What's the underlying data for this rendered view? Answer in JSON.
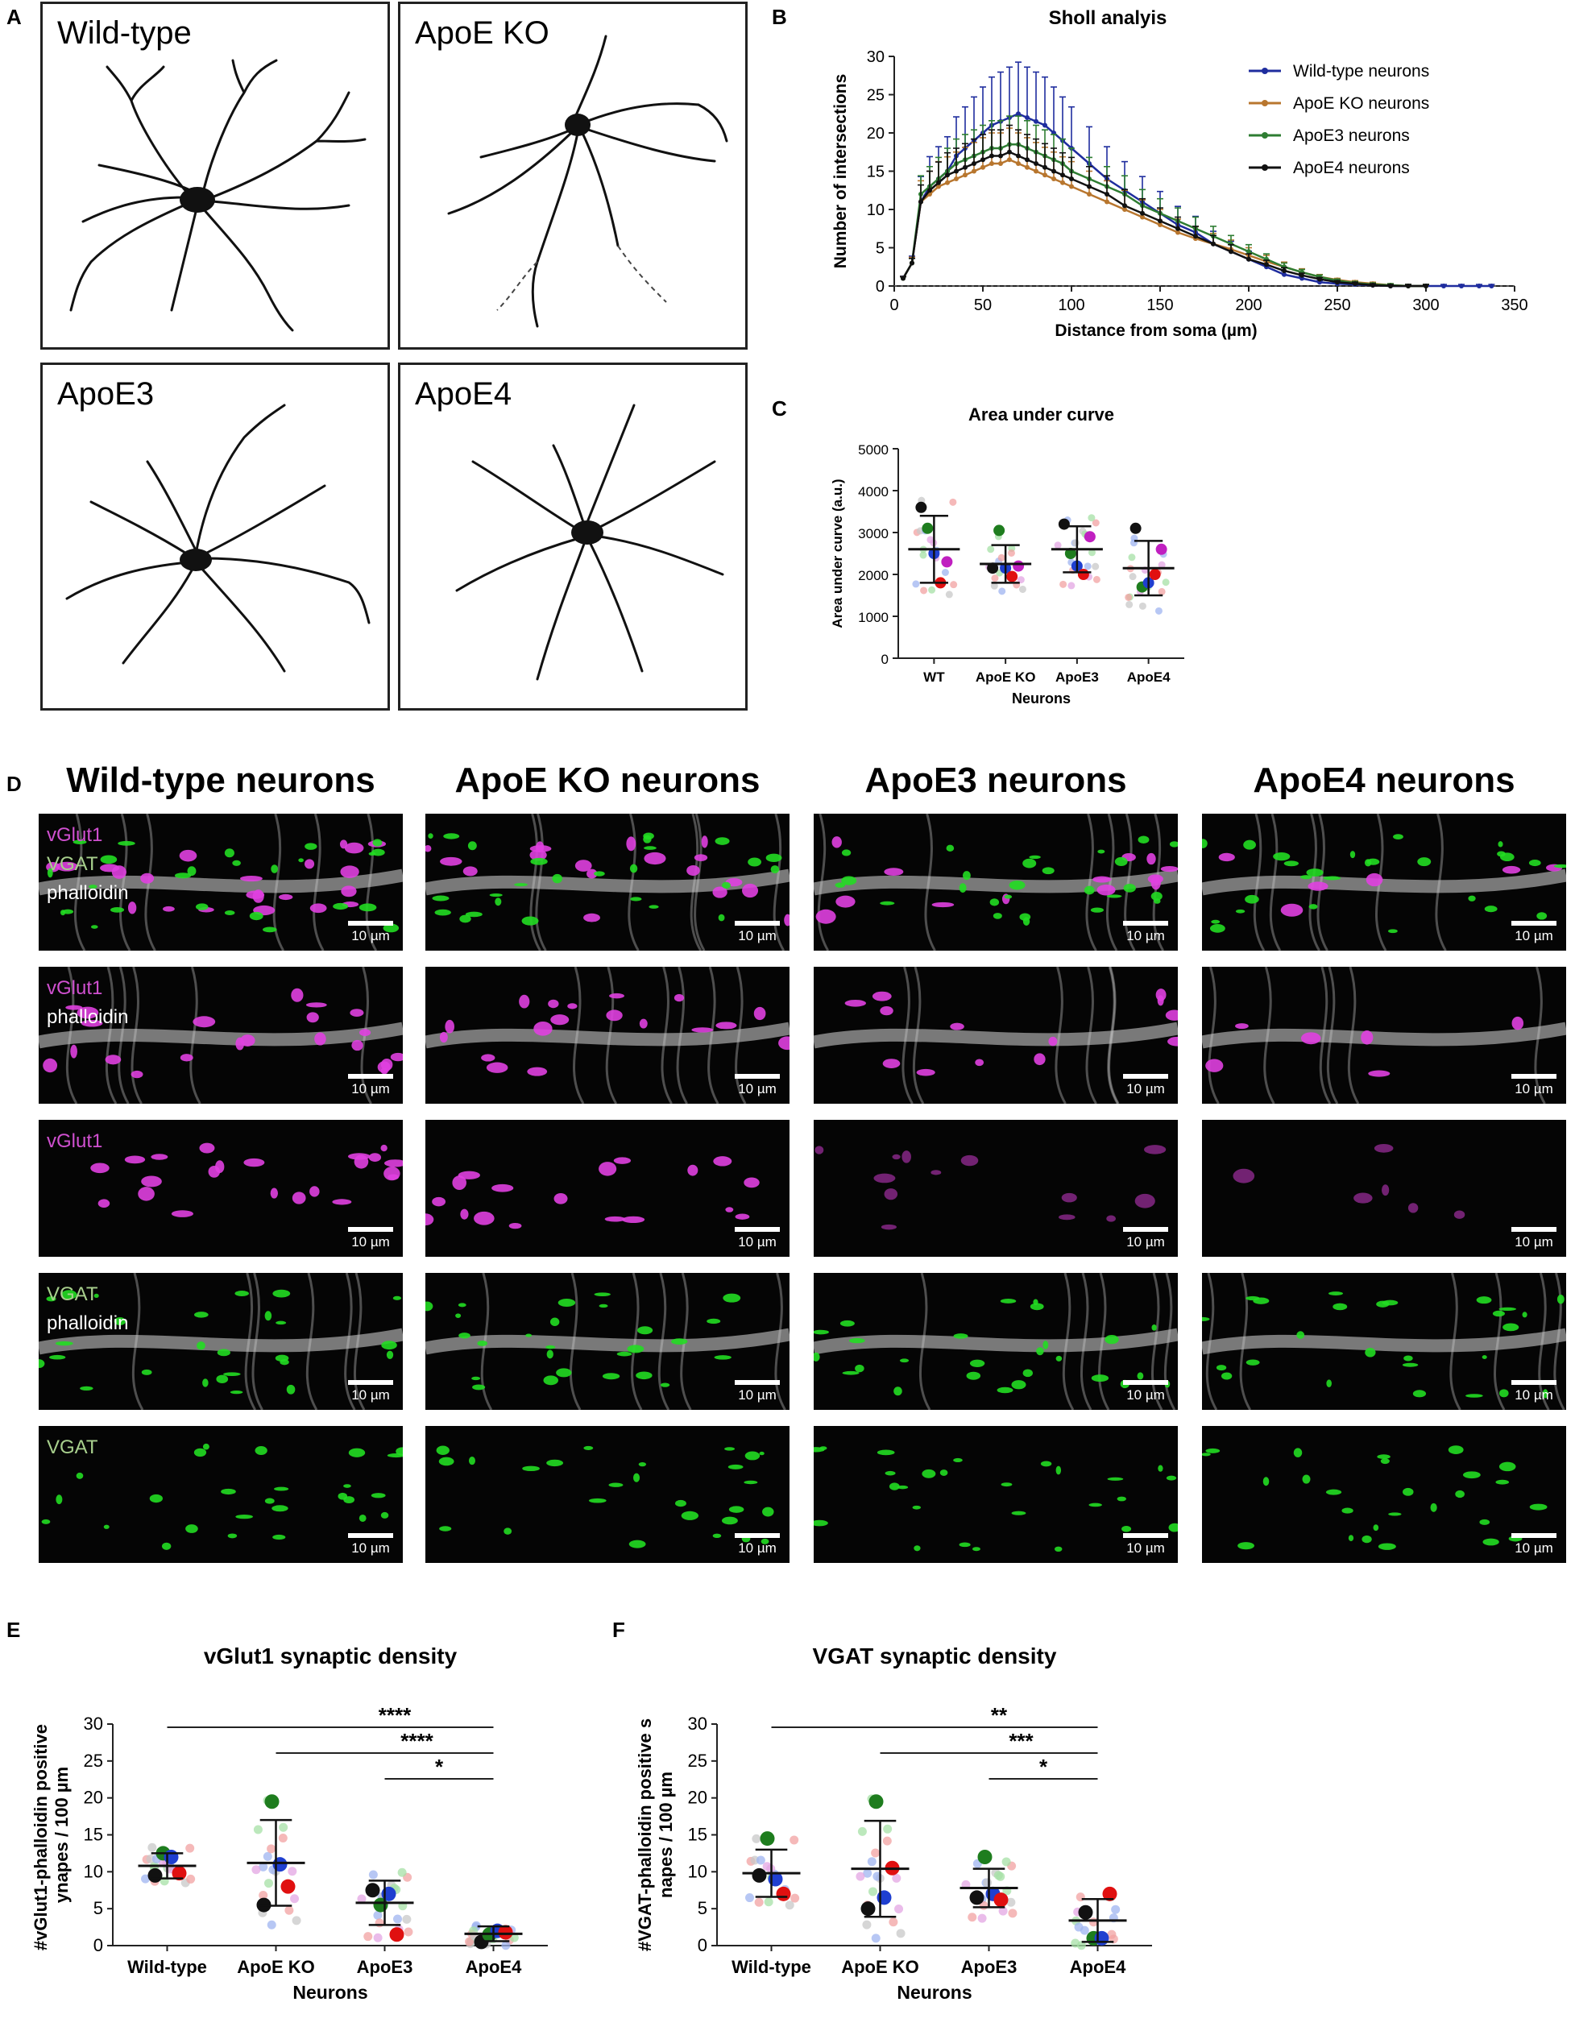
{
  "panels": {
    "a": "A",
    "b": "B",
    "c": "C",
    "d": "D",
    "e": "E",
    "f": "F"
  },
  "panel_a": {
    "labels": [
      "Wild-type",
      "ApoE KO",
      "ApoE3",
      "ApoE4"
    ]
  },
  "panel_d": {
    "column_titles": [
      "Wild-type neurons",
      "ApoE KO neurons",
      "ApoE3 neurons",
      "ApoE4 neurons"
    ],
    "channel_labels": {
      "vglut1": "vGlut1",
      "vgat": "VGAT",
      "phalloidin": "phalloidin"
    },
    "scale_bar": "10 µm",
    "colors": {
      "vglut1": "#e040e0",
      "vgat": "#22dd22",
      "phalloidin": "#d8d8d8",
      "label_vgat": "#a8d08d"
    }
  },
  "chart_data": [
    {
      "id": "B",
      "type": "line",
      "title": "Sholl analyis",
      "xlabel": "Distance from soma (µm)",
      "ylabel": "Number of intersections",
      "xlim": [
        0,
        350
      ],
      "ylim": [
        0,
        30
      ],
      "xticks": [
        0,
        50,
        100,
        150,
        200,
        250,
        300,
        350
      ],
      "yticks": [
        0,
        5,
        10,
        15,
        20,
        25,
        30
      ],
      "legend_position": "top-right",
      "series": [
        {
          "name": "Wild-type neurons",
          "color": "#1f2d9e",
          "x": [
            5,
            10,
            15,
            20,
            25,
            30,
            35,
            40,
            45,
            50,
            55,
            60,
            65,
            70,
            75,
            80,
            85,
            90,
            95,
            100,
            110,
            120,
            130,
            140,
            150,
            160,
            170,
            180,
            190,
            200,
            210,
            220,
            230,
            240,
            250,
            260,
            270,
            280,
            290,
            300,
            310,
            320,
            330,
            337
          ],
          "y": [
            1,
            3,
            11,
            13,
            14,
            15,
            17,
            18,
            19,
            20,
            21,
            21.5,
            22,
            22.5,
            22,
            21.5,
            21,
            20,
            19,
            18,
            16,
            14,
            12.5,
            11,
            9.5,
            8,
            7,
            5.5,
            4.5,
            3.5,
            2.5,
            1.5,
            1,
            0.5,
            0.3,
            0.2,
            0.1,
            0,
            0,
            0,
            0,
            0,
            0,
            0
          ]
        },
        {
          "name": "ApoE KO neurons",
          "color": "#b8762e",
          "x": [
            5,
            10,
            15,
            20,
            25,
            30,
            35,
            40,
            45,
            50,
            55,
            60,
            65,
            70,
            75,
            80,
            85,
            90,
            95,
            100,
            110,
            120,
            130,
            140,
            150,
            160,
            170,
            180,
            190,
            200,
            210,
            220,
            230,
            240,
            250,
            260,
            270,
            280,
            290,
            300
          ],
          "y": [
            1,
            3,
            11,
            12,
            13,
            13.5,
            14,
            14.5,
            15,
            15.5,
            16,
            16,
            16.5,
            16,
            15.5,
            15,
            14.5,
            14,
            13.5,
            13,
            12,
            11,
            10,
            9,
            8,
            7,
            6.2,
            5.5,
            4.8,
            4,
            3.2,
            2.5,
            1.8,
            1.2,
            0.8,
            0.5,
            0.3,
            0.1,
            0,
            0
          ]
        },
        {
          "name": "ApoE3 neurons",
          "color": "#2e7d32",
          "x": [
            5,
            10,
            15,
            20,
            25,
            30,
            35,
            40,
            45,
            50,
            55,
            60,
            65,
            70,
            75,
            80,
            85,
            90,
            95,
            100,
            110,
            120,
            130,
            140,
            150,
            160,
            170,
            180,
            190,
            200,
            210,
            220,
            230,
            240,
            250,
            260,
            270,
            280,
            290,
            300
          ],
          "y": [
            1,
            3,
            12,
            13,
            14,
            15,
            16,
            16.5,
            17,
            17.5,
            18,
            18,
            18.5,
            18.5,
            18,
            17.5,
            17,
            16.5,
            16,
            15,
            14,
            13,
            12,
            10.5,
            9.5,
            8.5,
            7.5,
            6.5,
            5.5,
            4.5,
            3.5,
            2.5,
            1.8,
            1.2,
            0.7,
            0.4,
            0.2,
            0.1,
            0,
            0
          ]
        },
        {
          "name": "ApoE4 neurons",
          "color": "#111111",
          "x": [
            5,
            10,
            15,
            20,
            25,
            30,
            35,
            40,
            45,
            50,
            55,
            60,
            65,
            70,
            75,
            80,
            85,
            90,
            95,
            100,
            110,
            120,
            130,
            140,
            150,
            160,
            170,
            180,
            190,
            200,
            210,
            220,
            230,
            240,
            250,
            260,
            270,
            280,
            290,
            300
          ],
          "y": [
            1,
            3,
            11,
            12.5,
            13.5,
            14.5,
            15,
            15.5,
            16,
            16.5,
            17,
            17,
            17.5,
            17,
            16.5,
            16,
            15.5,
            15,
            14.5,
            14,
            13,
            12,
            10.5,
            9.5,
            8.5,
            7.5,
            6.5,
            5.5,
            4.5,
            3.5,
            2.8,
            2,
            1.4,
            0.9,
            0.5,
            0.3,
            0.1,
            0,
            0,
            0
          ]
        }
      ]
    },
    {
      "id": "C",
      "type": "scatter",
      "title": "Area under curve",
      "xlabel": "Neurons",
      "ylabel": "Area under curve (a.u.)",
      "categories": [
        "WT",
        "ApoE KO",
        "ApoE3",
        "ApoE4"
      ],
      "ylim": [
        0,
        5000
      ],
      "yticks": [
        0,
        1000,
        2000,
        3000,
        4000,
        5000
      ],
      "mean": [
        2600,
        2250,
        2600,
        2150
      ],
      "sd": [
        800,
        450,
        550,
        650
      ],
      "experiment_means": [
        {
          "color": "#111111",
          "values": [
            3600,
            2150,
            3200,
            3100
          ]
        },
        {
          "color": "#1e7d1e",
          "values": [
            3100,
            3050,
            2500,
            1700
          ]
        },
        {
          "color": "#1f3fd0",
          "values": [
            2500,
            2150,
            2200,
            1800
          ]
        },
        {
          "color": "#e01010",
          "values": [
            1800,
            1950,
            2000,
            2000
          ]
        },
        {
          "color": "#c020c0",
          "values": [
            2300,
            2200,
            2900,
            2600
          ]
        }
      ]
    },
    {
      "id": "E",
      "type": "scatter",
      "title": "vGlut1 synaptic density",
      "xlabel": "Neurons",
      "ylabel": "#vGlut1-phalloidin positive synapes / 100 µm",
      "categories": [
        "Wild-type",
        "ApoE KO",
        "ApoE3",
        "ApoE4"
      ],
      "ylim": [
        0,
        30
      ],
      "yticks": [
        0,
        5,
        10,
        15,
        20,
        25,
        30
      ],
      "mean": [
        10.8,
        11.2,
        5.8,
        1.6
      ],
      "sd": [
        1.7,
        5.8,
        3.0,
        1.0
      ],
      "experiment_means": [
        {
          "color": "#111111",
          "values": [
            9.5,
            5.5,
            7.5,
            0.5
          ]
        },
        {
          "color": "#1e7d1e",
          "values": [
            12.5,
            19.5,
            5.5,
            1.5
          ]
        },
        {
          "color": "#1f3fd0",
          "values": [
            12.0,
            11.0,
            7.0,
            2.0
          ]
        },
        {
          "color": "#e01010",
          "values": [
            9.8,
            8.0,
            1.5,
            1.8
          ]
        }
      ],
      "significance": [
        {
          "from": 0,
          "to": 3,
          "label": "****"
        },
        {
          "from": 1,
          "to": 3,
          "label": "****"
        },
        {
          "from": 2,
          "to": 3,
          "label": "*"
        }
      ]
    },
    {
      "id": "F",
      "type": "scatter",
      "title": "VGAT synaptic density",
      "xlabel": "Neurons",
      "ylabel": "#VGAT-phalloidin positive synapes / 100 µm",
      "categories": [
        "Wild-type",
        "ApoE KO",
        "ApoE3",
        "ApoE4"
      ],
      "ylim": [
        0,
        30
      ],
      "yticks": [
        0,
        5,
        10,
        15,
        20,
        25,
        30
      ],
      "mean": [
        9.8,
        10.4,
        7.8,
        3.4
      ],
      "sd": [
        3.2,
        6.5,
        2.6,
        2.9
      ],
      "experiment_means": [
        {
          "color": "#111111",
          "values": [
            9.5,
            5.0,
            6.5,
            4.5
          ]
        },
        {
          "color": "#1e7d1e",
          "values": [
            14.5,
            19.5,
            12.0,
            1.0
          ]
        },
        {
          "color": "#1f3fd0",
          "values": [
            9.0,
            6.5,
            7.0,
            1.0
          ]
        },
        {
          "color": "#e01010",
          "values": [
            7.0,
            10.5,
            6.2,
            7.0
          ]
        }
      ],
      "significance": [
        {
          "from": 0,
          "to": 3,
          "label": "**"
        },
        {
          "from": 1,
          "to": 3,
          "label": "***"
        },
        {
          "from": 2,
          "to": 3,
          "label": "*"
        }
      ]
    }
  ]
}
